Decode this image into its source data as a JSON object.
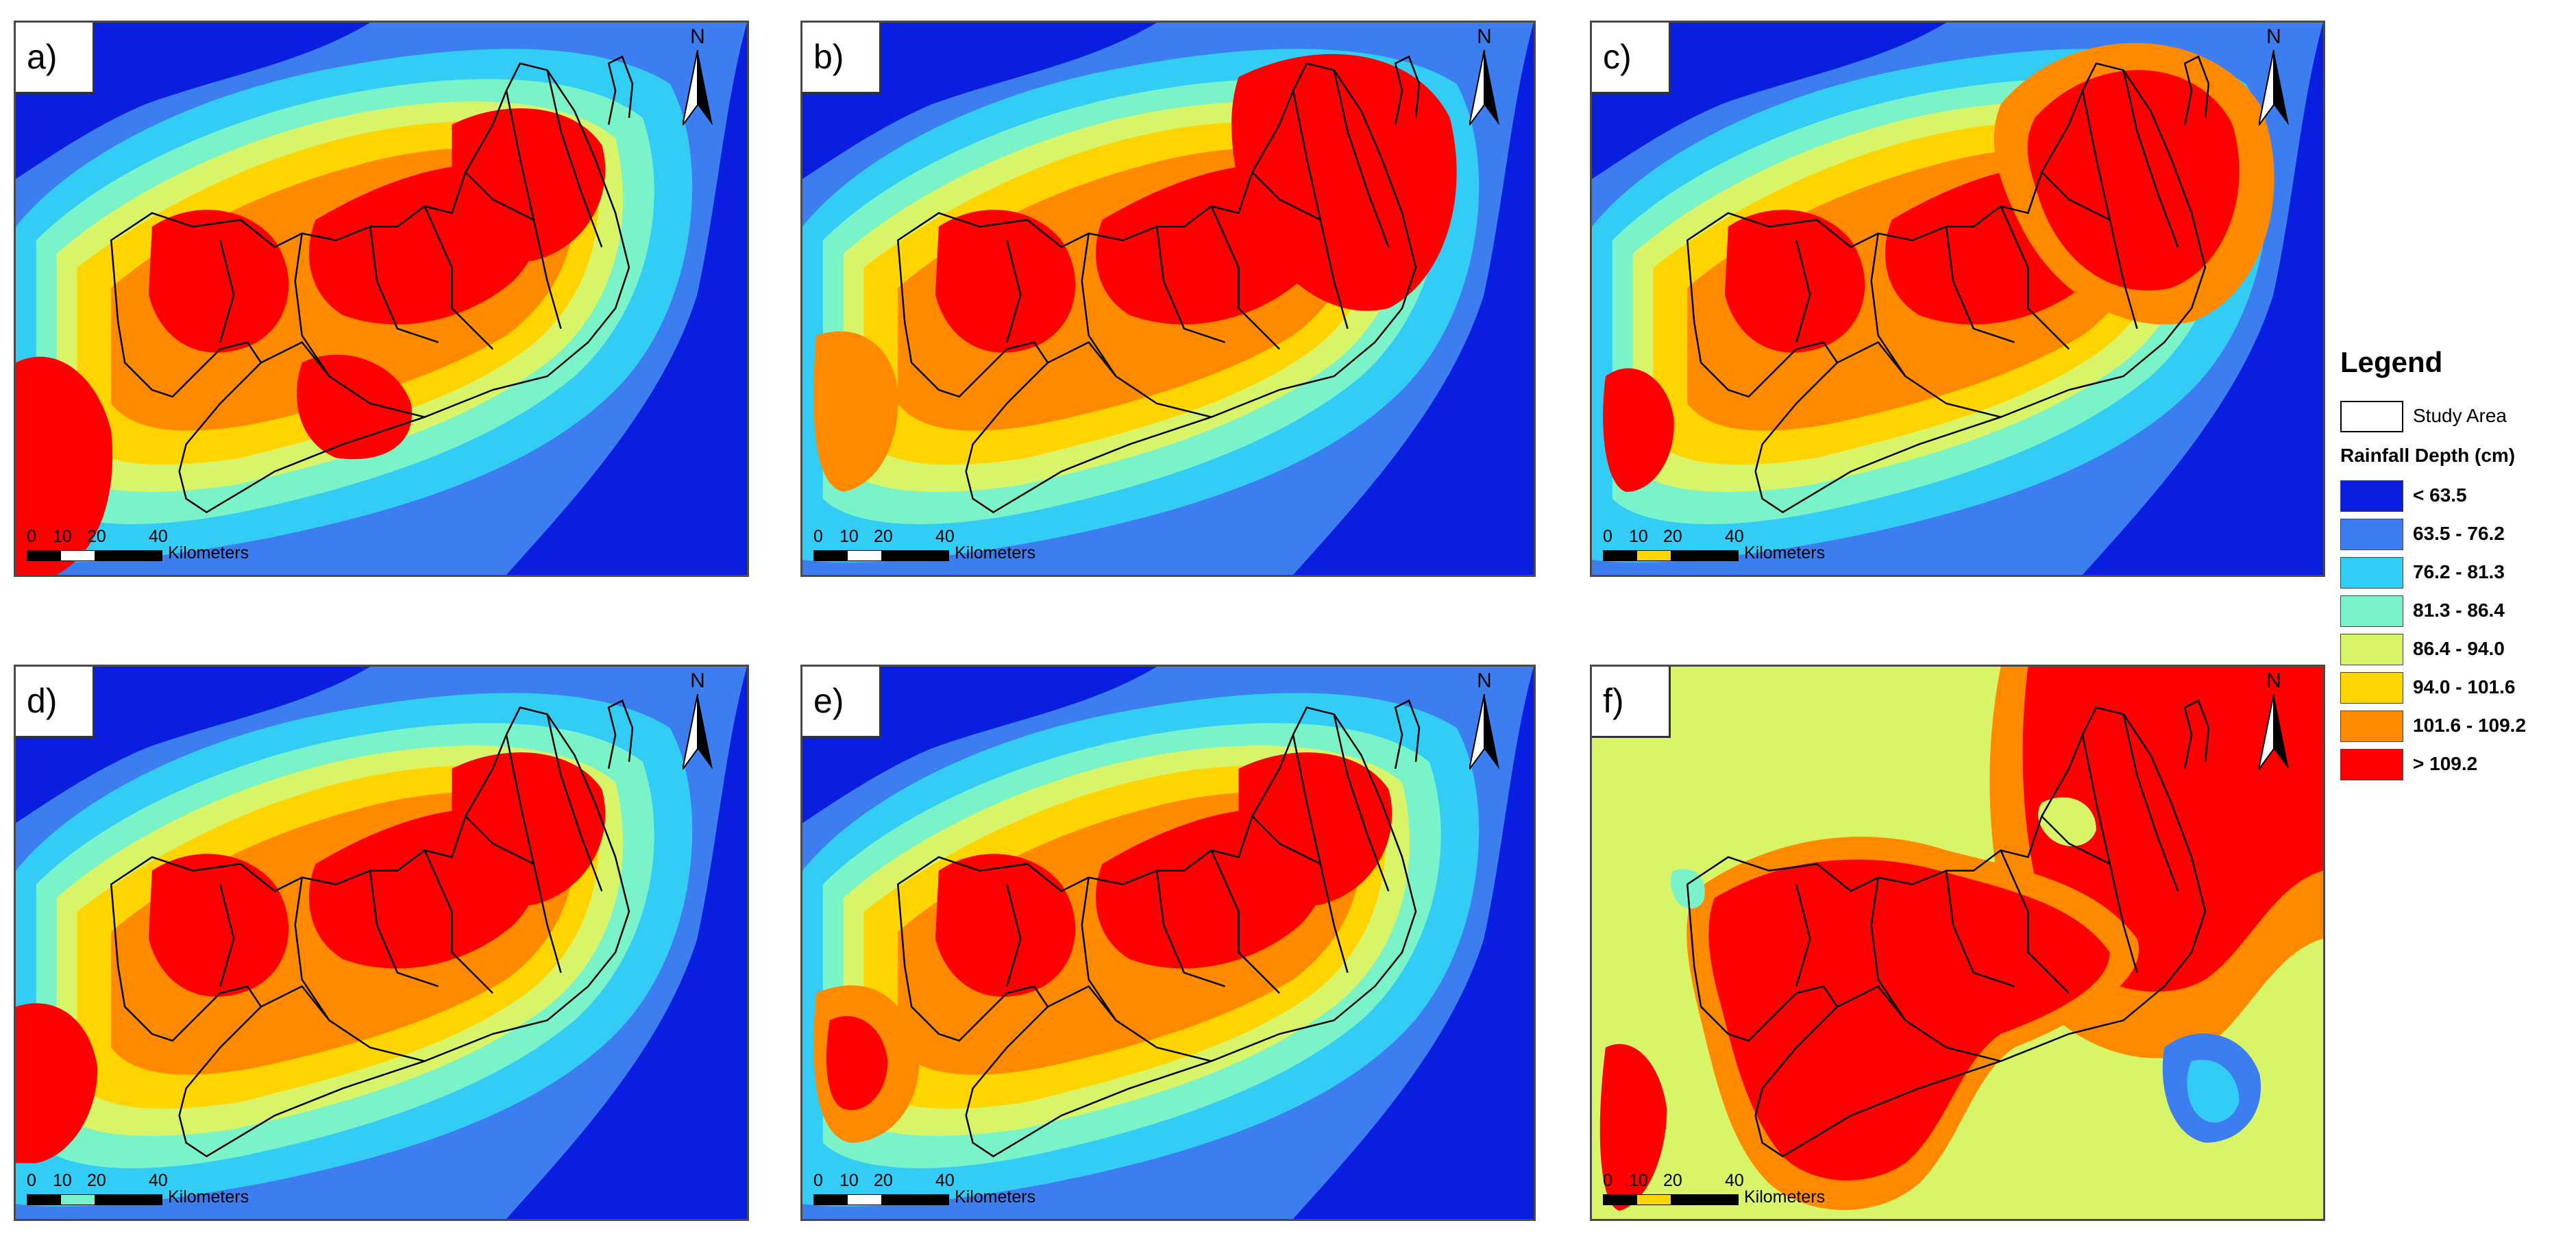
{
  "panels": [
    {
      "label": "a)"
    },
    {
      "label": "b)"
    },
    {
      "label": "c)"
    },
    {
      "label": "d)"
    },
    {
      "label": "e)"
    },
    {
      "label": "f)"
    }
  ],
  "north_arrow": {
    "letter": "N"
  },
  "scale_bar": {
    "ticks": [
      "0",
      "10",
      "20",
      "40"
    ],
    "unit": "Kilometers"
  },
  "legend": {
    "title": "Legend",
    "study_area_label": "Study Area",
    "rainfall_title": "Rainfall Depth (cm)",
    "classes": [
      {
        "label": "< 63.5",
        "color": "#0a1ee0"
      },
      {
        "label": "63.5 - 76.2",
        "color": "#3c7ef0"
      },
      {
        "label": "76.2 - 81.3",
        "color": "#33ccf5"
      },
      {
        "label": "81.3 - 86.4",
        "color": "#7af3c8"
      },
      {
        "label": "86.4 - 94.0",
        "color": "#d8f56a"
      },
      {
        "label": "94.0 - 101.6",
        "color": "#ffd400"
      },
      {
        "label": "101.6 - 109.2",
        "color": "#ff8a00"
      },
      {
        "label": "> 109.2",
        "color": "#ff0000"
      }
    ]
  }
}
